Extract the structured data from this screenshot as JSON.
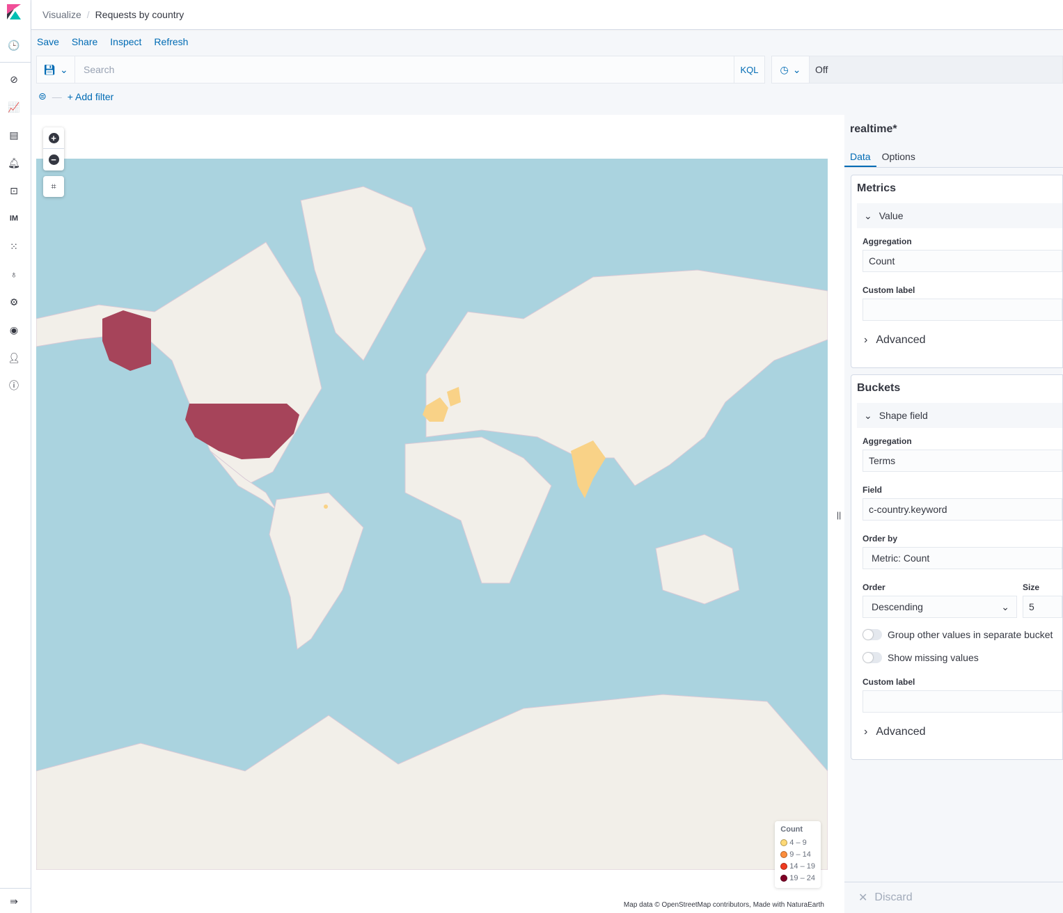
{
  "breadcrumb": {
    "parent": "Visualize",
    "current": "Requests by country"
  },
  "sidebar": {
    "items": [
      "recently-viewed",
      "discover",
      "visualize",
      "dashboard",
      "alerting",
      "dev-tools",
      "im",
      "apps",
      "monitoring",
      "management",
      "security",
      "user",
      "info"
    ],
    "im_label": "IM"
  },
  "menu": {
    "save": "Save",
    "share": "Share",
    "inspect": "Inspect",
    "refresh": "Refresh"
  },
  "query": {
    "placeholder": "Search",
    "value": "",
    "language": "KQL"
  },
  "time": {
    "refresh": "Off"
  },
  "filter": {
    "add": "+ Add filter"
  },
  "map": {
    "legend": {
      "title": "Count",
      "items": [
        {
          "label": "4 – 9",
          "color": "#fed976"
        },
        {
          "label": "9 – 14",
          "color": "#fd8d3c"
        },
        {
          "label": "14 – 19",
          "color": "#f03b20"
        },
        {
          "label": "19 – 24",
          "color": "#800026"
        }
      ]
    },
    "attribution": "Map data © OpenStreetMap contributors, Made with NaturaEarth",
    "colors": {
      "ocean": "#aad3df",
      "land": "#f2efe9",
      "high": "#a6445a",
      "low": "#f9d287"
    }
  },
  "panel": {
    "index": "realtime*",
    "tabs": [
      "Data",
      "Options"
    ],
    "metrics": {
      "title": "Metrics",
      "item": "Value",
      "aggregation_label": "Aggregation",
      "aggregation": "Count",
      "custom_label": "Custom label",
      "custom_value": "",
      "advanced": "Advanced"
    },
    "buckets": {
      "title": "Buckets",
      "item": "Shape field",
      "aggregation_label": "Aggregation",
      "aggregation": "Terms",
      "field_label": "Field",
      "field": "c-country.keyword",
      "order_by_label": "Order by",
      "order_by": "Metric: Count",
      "order_label": "Order",
      "order": "Descending",
      "size_label": "Size",
      "size": "5",
      "group_other": "Group other values in separate bucket",
      "show_missing": "Show missing values",
      "custom_label": "Custom label",
      "custom_value": "",
      "advanced": "Advanced"
    },
    "discard": "Discard"
  }
}
